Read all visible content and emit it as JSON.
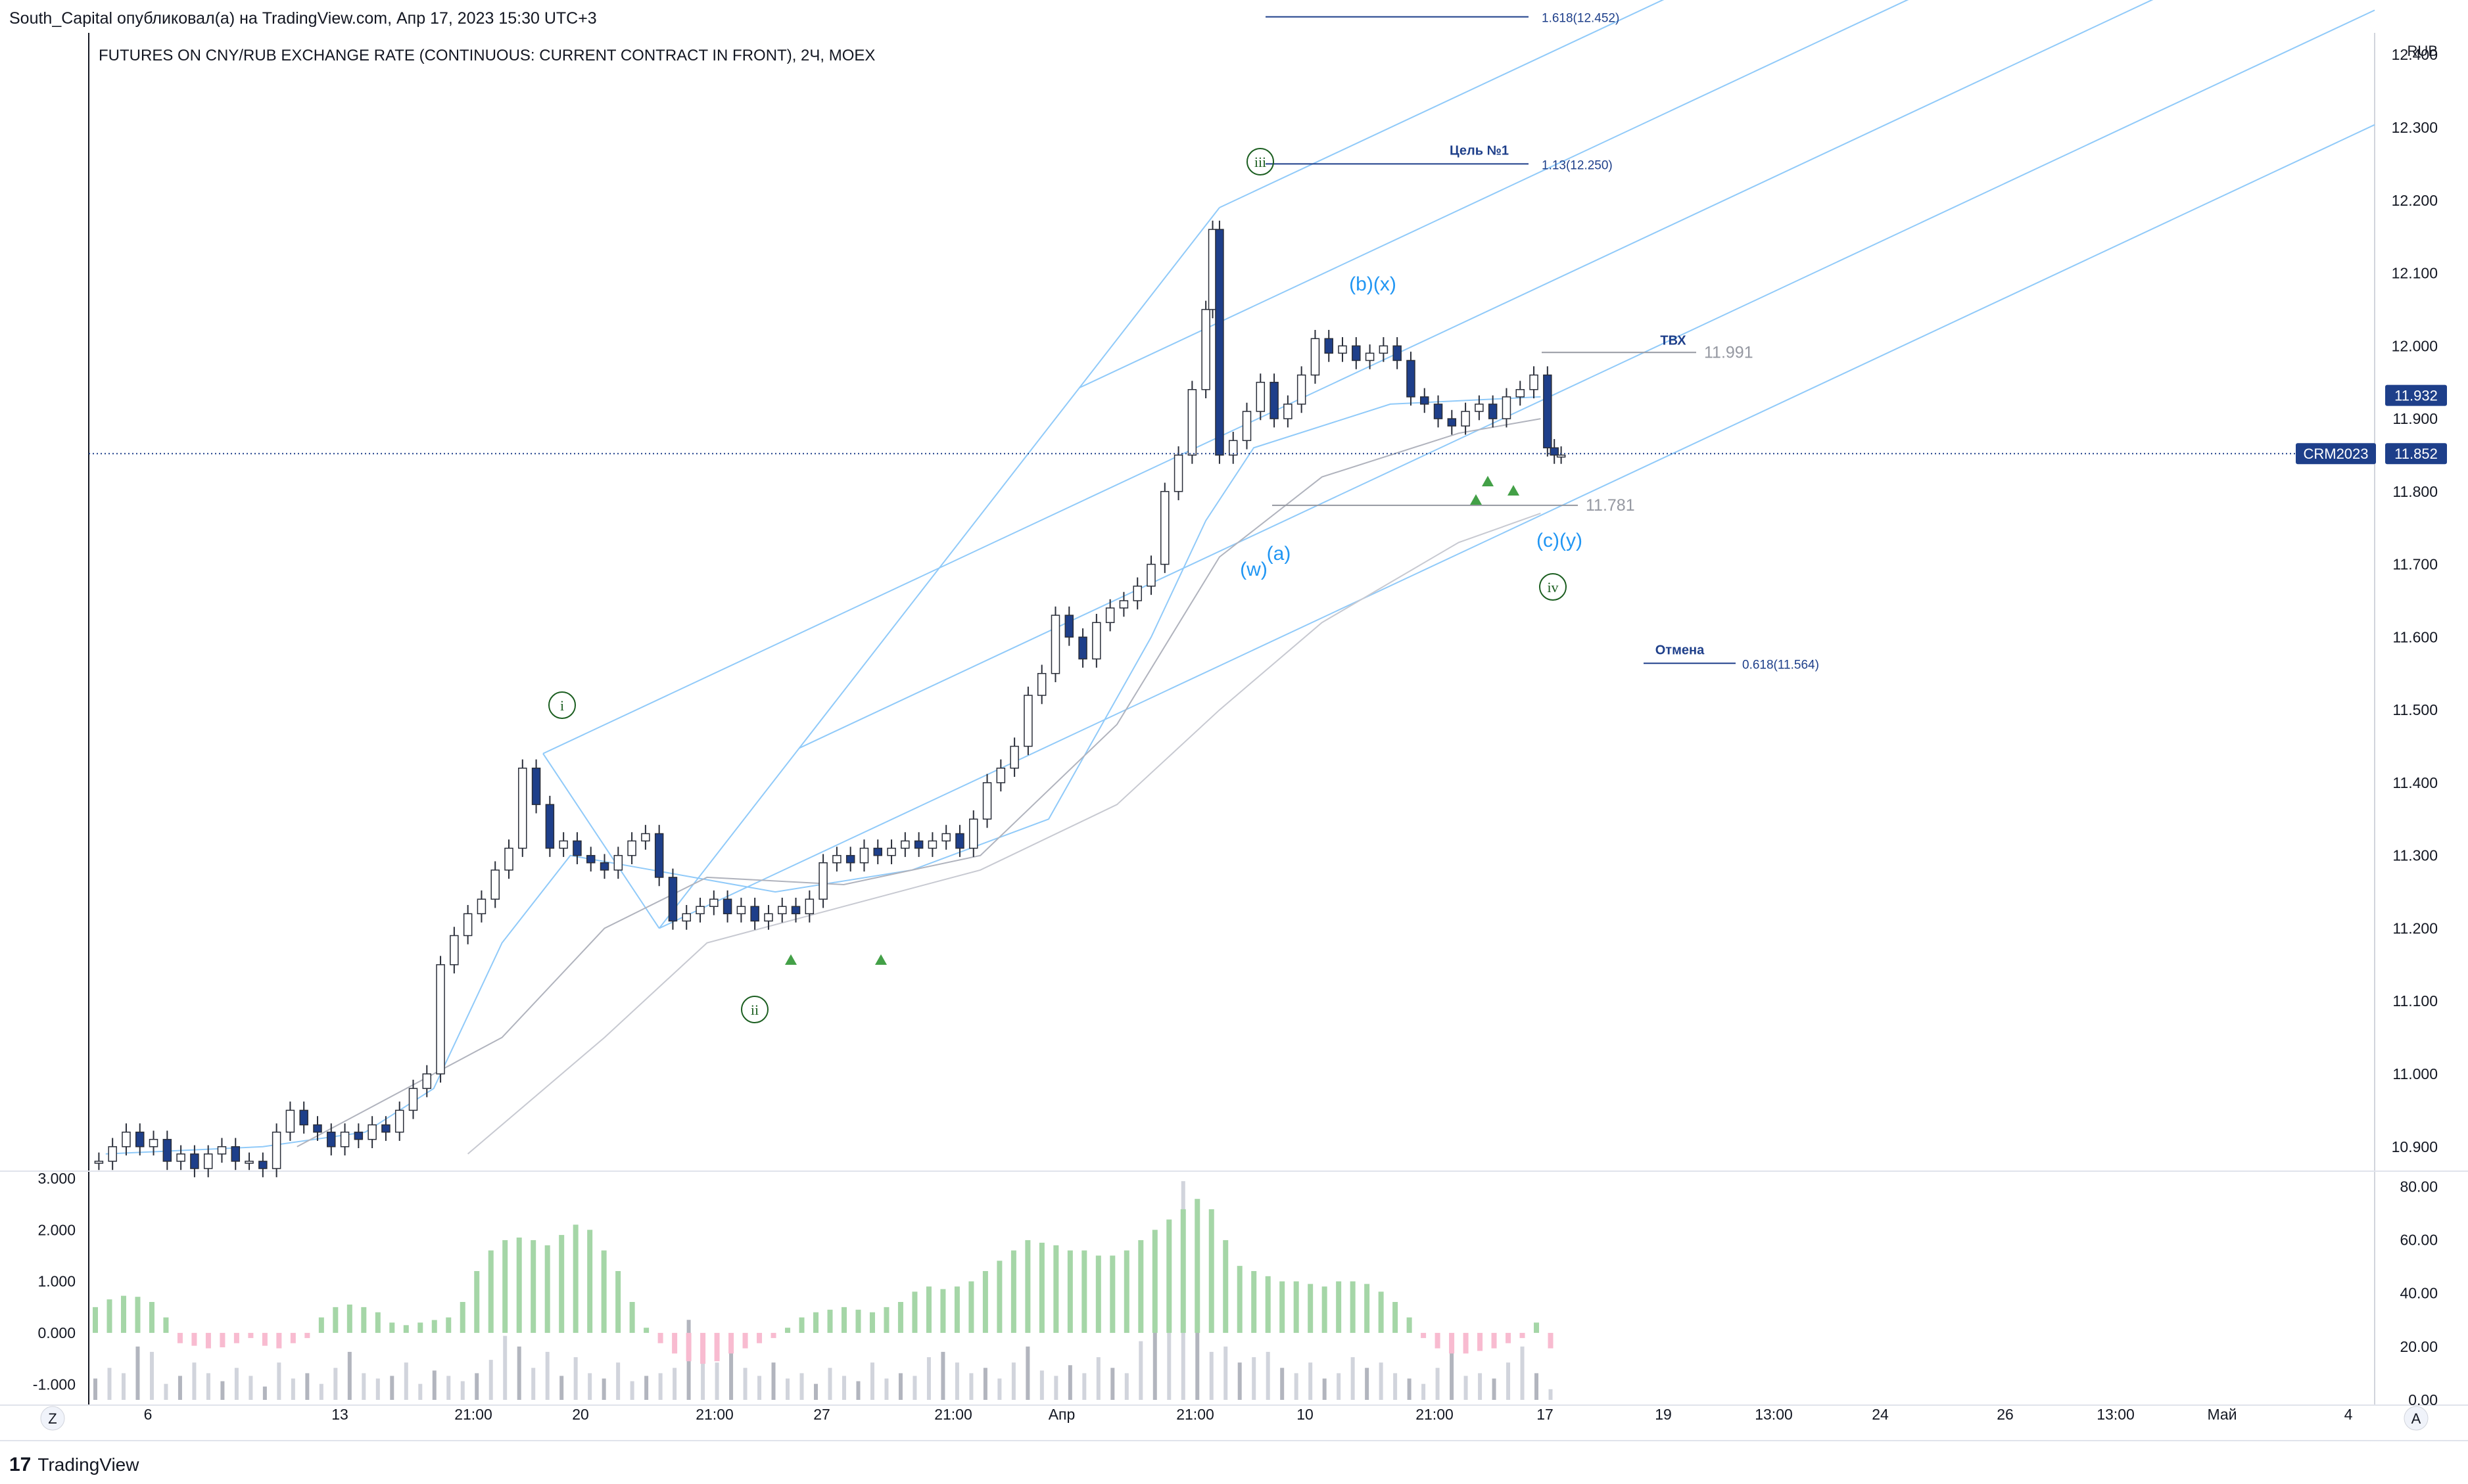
{
  "header": {
    "attribution": "South_Capital опубликовал(а) на TradingView.com, Апр 17, 2023 15:30 UTC+3"
  },
  "footer": {
    "brand": "TradingView"
  },
  "chart_data": {
    "type": "candlestick",
    "title": "FUTURES ON CNY/RUB EXCHANGE RATE (CONTINUOUS: CURRENT CONTRACT IN FRONT), 2Ч, MOEX",
    "currency": "RUB",
    "y_ticks": [
      "12.400",
      "12.300",
      "12.200",
      "12.100",
      "12.000",
      "11.900",
      "11.800",
      "11.700",
      "11.600",
      "11.500",
      "11.400",
      "11.300",
      "11.200",
      "11.100",
      "11.000",
      "10.900"
    ],
    "ylim": [
      10.87,
      12.43
    ],
    "x_ticks": [
      "6",
      "13",
      "21:00",
      "20",
      "21:00",
      "27",
      "21:00",
      "Апр",
      "21:00",
      "10",
      "21:00",
      "17",
      "19",
      "13:00",
      "24",
      "26",
      "13:00",
      "Май",
      "4"
    ],
    "price_series": [
      [
        1,
        10.88
      ],
      [
        3,
        10.9
      ],
      [
        5,
        10.92
      ],
      [
        7,
        10.9
      ],
      [
        9,
        10.91
      ],
      [
        11,
        10.88
      ],
      [
        13,
        10.89
      ],
      [
        15,
        10.87
      ],
      [
        17,
        10.89
      ],
      [
        19,
        10.9
      ],
      [
        21,
        10.88
      ],
      [
        23,
        10.88
      ],
      [
        25,
        10.87
      ],
      [
        27,
        10.92
      ],
      [
        29,
        10.95
      ],
      [
        31,
        10.93
      ],
      [
        33,
        10.92
      ],
      [
        35,
        10.9
      ],
      [
        37,
        10.92
      ],
      [
        39,
        10.91
      ],
      [
        41,
        10.93
      ],
      [
        43,
        10.92
      ],
      [
        45,
        10.95
      ],
      [
        47,
        10.98
      ],
      [
        49,
        11.0
      ],
      [
        51,
        11.15
      ],
      [
        53,
        11.19
      ],
      [
        55,
        11.22
      ],
      [
        57,
        11.24
      ],
      [
        59,
        11.28
      ],
      [
        61,
        11.31
      ],
      [
        63,
        11.42
      ],
      [
        65,
        11.37
      ],
      [
        67,
        11.31
      ],
      [
        69,
        11.32
      ],
      [
        71,
        11.3
      ],
      [
        73,
        11.29
      ],
      [
        75,
        11.28
      ],
      [
        77,
        11.3
      ],
      [
        79,
        11.32
      ],
      [
        81,
        11.33
      ],
      [
        83,
        11.27
      ],
      [
        85,
        11.21
      ],
      [
        87,
        11.22
      ],
      [
        89,
        11.23
      ],
      [
        91,
        11.24
      ],
      [
        93,
        11.22
      ],
      [
        95,
        11.23
      ],
      [
        97,
        11.21
      ],
      [
        99,
        11.22
      ],
      [
        101,
        11.23
      ],
      [
        103,
        11.22
      ],
      [
        105,
        11.24
      ],
      [
        107,
        11.29
      ],
      [
        109,
        11.3
      ],
      [
        111,
        11.29
      ],
      [
        113,
        11.31
      ],
      [
        115,
        11.3
      ],
      [
        117,
        11.31
      ],
      [
        119,
        11.32
      ],
      [
        121,
        11.31
      ],
      [
        123,
        11.32
      ],
      [
        125,
        11.33
      ],
      [
        127,
        11.31
      ],
      [
        129,
        11.35
      ],
      [
        131,
        11.4
      ],
      [
        133,
        11.42
      ],
      [
        135,
        11.45
      ],
      [
        137,
        11.52
      ],
      [
        139,
        11.55
      ],
      [
        141,
        11.63
      ],
      [
        143,
        11.6
      ],
      [
        145,
        11.57
      ],
      [
        147,
        11.62
      ],
      [
        149,
        11.64
      ],
      [
        151,
        11.65
      ],
      [
        153,
        11.67
      ],
      [
        155,
        11.7
      ],
      [
        157,
        11.8
      ],
      [
        159,
        11.85
      ],
      [
        161,
        11.94
      ],
      [
        163,
        12.05
      ],
      [
        164,
        12.16
      ],
      [
        165,
        11.85
      ],
      [
        167,
        11.87
      ],
      [
        169,
        11.91
      ],
      [
        171,
        11.95
      ],
      [
        173,
        11.9
      ],
      [
        175,
        11.92
      ],
      [
        177,
        11.96
      ],
      [
        179,
        12.01
      ],
      [
        181,
        11.99
      ],
      [
        183,
        12.0
      ],
      [
        185,
        11.98
      ],
      [
        187,
        11.99
      ],
      [
        189,
        12.0
      ],
      [
        191,
        11.98
      ],
      [
        193,
        11.93
      ],
      [
        195,
        11.92
      ],
      [
        197,
        11.9
      ],
      [
        199,
        11.89
      ],
      [
        201,
        11.91
      ],
      [
        203,
        11.92
      ],
      [
        205,
        11.9
      ],
      [
        207,
        11.93
      ],
      [
        209,
        11.94
      ],
      [
        211,
        11.96
      ],
      [
        213,
        11.86
      ],
      [
        214,
        11.85
      ],
      [
        215,
        11.85
      ]
    ],
    "pitchfork_base_points": [
      [
        66,
        11.44
      ],
      [
        83,
        11.2
      ],
      [
        165,
        12.19
      ]
    ],
    "moving_average_series": [
      {
        "name": "line-1",
        "points": [
          [
            2,
            10.89
          ],
          [
            25,
            10.9
          ],
          [
            40,
            10.92
          ],
          [
            50,
            10.98
          ],
          [
            60,
            11.18
          ],
          [
            70,
            11.3
          ],
          [
            82,
            11.28
          ],
          [
            100,
            11.25
          ],
          [
            120,
            11.28
          ],
          [
            140,
            11.35
          ],
          [
            155,
            11.6
          ],
          [
            163,
            11.76
          ],
          [
            170,
            11.86
          ],
          [
            190,
            11.92
          ],
          [
            212,
            11.93
          ]
        ]
      },
      {
        "name": "line-2",
        "points": [
          [
            30,
            10.9
          ],
          [
            60,
            11.05
          ],
          [
            75,
            11.2
          ],
          [
            90,
            11.27
          ],
          [
            110,
            11.26
          ],
          [
            130,
            11.3
          ],
          [
            150,
            11.48
          ],
          [
            165,
            11.71
          ],
          [
            180,
            11.82
          ],
          [
            200,
            11.88
          ],
          [
            212,
            11.9
          ]
        ]
      },
      {
        "name": "line-3",
        "points": [
          [
            55,
            10.89
          ],
          [
            75,
            11.05
          ],
          [
            90,
            11.18
          ],
          [
            110,
            11.23
          ],
          [
            130,
            11.28
          ],
          [
            150,
            11.37
          ],
          [
            165,
            11.5
          ],
          [
            180,
            11.62
          ],
          [
            200,
            11.73
          ],
          [
            212,
            11.77
          ]
        ]
      }
    ],
    "levels": [
      {
        "label": "Цель №1",
        "text": "1.13(12.250)",
        "price": 12.25
      },
      {
        "label": "",
        "text": "1.618(12.452)",
        "price": 12.452
      },
      {
        "label": "Отмена",
        "text": "0.618(11.564)",
        "price": 11.564
      },
      {
        "label": "ТВХ",
        "text": "11.991",
        "price": 11.991
      },
      {
        "label": "",
        "text": "11.781",
        "price": 11.781
      }
    ],
    "wave_labels": [
      {
        "text": "i",
        "circled": true
      },
      {
        "text": "ii",
        "circled": true
      },
      {
        "text": "iii",
        "circled": true
      },
      {
        "text": "iv",
        "circled": true
      },
      {
        "text": "(w)",
        "circled": false
      },
      {
        "text": "(a)",
        "circled": false
      },
      {
        "text": "(b)(x)",
        "circled": false
      },
      {
        "text": "(c)(y)",
        "circled": false
      }
    ],
    "price_tags": [
      {
        "name": "last-price",
        "text": "11.932"
      },
      {
        "name": "contract",
        "symbol": "CRM2023",
        "text": "11.852"
      }
    ],
    "current_price": 11.852,
    "oscillator": {
      "y_ticks": [
        "3.000",
        "2.000",
        "1.000",
        "0.000",
        "-1.000"
      ],
      "ylim": [
        -1.3,
        3.1
      ],
      "histogram": [
        0.5,
        0.65,
        0.72,
        0.7,
        0.6,
        0.3,
        -0.2,
        -0.25,
        -0.3,
        -0.28,
        -0.2,
        -0.1,
        -0.25,
        -0.3,
        -0.2,
        -0.1,
        0.3,
        0.5,
        0.55,
        0.5,
        0.4,
        0.2,
        0.15,
        0.2,
        0.25,
        0.3,
        0.6,
        1.2,
        1.6,
        1.8,
        1.85,
        1.8,
        1.7,
        1.9,
        2.1,
        2.0,
        1.6,
        1.2,
        0.6,
        0.1,
        -0.2,
        -0.4,
        -0.55,
        -0.6,
        -0.55,
        -0.4,
        -0.3,
        -0.2,
        -0.1,
        0.1,
        0.3,
        0.4,
        0.45,
        0.5,
        0.45,
        0.4,
        0.5,
        0.6,
        0.8,
        0.9,
        0.85,
        0.9,
        1.0,
        1.2,
        1.4,
        1.6,
        1.8,
        1.75,
        1.7,
        1.6,
        1.6,
        1.5,
        1.5,
        1.6,
        1.8,
        2.0,
        2.2,
        2.4,
        2.6,
        2.4,
        1.8,
        1.3,
        1.2,
        1.1,
        1.0,
        1.0,
        0.95,
        0.9,
        1.0,
        1.0,
        0.95,
        0.8,
        0.6,
        0.3,
        -0.1,
        -0.3,
        -0.4,
        -0.4,
        -0.35,
        -0.3,
        -0.2,
        -0.1,
        0.2,
        -0.3
      ],
      "right_axis_ticks": [
        "80.00",
        "60.00",
        "40.00",
        "20.00",
        "0.00"
      ],
      "right_ylim": [
        0,
        85
      ],
      "volume": [
        8,
        12,
        10,
        20,
        18,
        6,
        9,
        14,
        10,
        7,
        12,
        9,
        5,
        14,
        8,
        10,
        6,
        12,
        18,
        10,
        8,
        9,
        14,
        6,
        11,
        9,
        7,
        10,
        15,
        24,
        20,
        12,
        18,
        9,
        16,
        10,
        8,
        14,
        7,
        9,
        10,
        12,
        30,
        22,
        14,
        18,
        12,
        9,
        14,
        8,
        10,
        6,
        12,
        9,
        7,
        14,
        8,
        10,
        9,
        16,
        18,
        14,
        10,
        12,
        8,
        14,
        20,
        11,
        9,
        13,
        10,
        16,
        12,
        10,
        22,
        34,
        28,
        82,
        30,
        18,
        20,
        14,
        16,
        18,
        12,
        10,
        14,
        8,
        10,
        16,
        12,
        14,
        10,
        8,
        6,
        12,
        18,
        9,
        10,
        8,
        14,
        20,
        10,
        4
      ]
    },
    "buttons": {
      "left": "Z",
      "right": "A"
    }
  }
}
